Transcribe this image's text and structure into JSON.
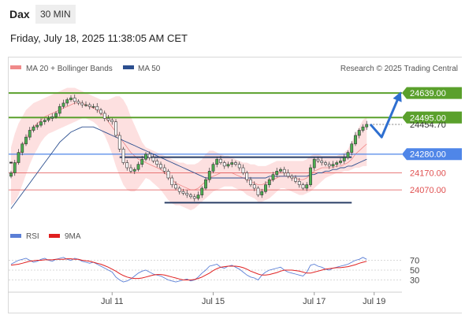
{
  "header": {
    "symbol": "Dax",
    "timeframe": "30 MIN",
    "datetime": "Friday, July 18, 2025 11:38:05 AM CET"
  },
  "legend": {
    "items": [
      {
        "label": "MA 20 + Bollinger Bands",
        "color": "#f08a8a"
      },
      {
        "label": "MA 50",
        "color": "#2c4f8f"
      }
    ],
    "credit": "Research © 2025 Trading Central"
  },
  "rsi_legend": {
    "items": [
      {
        "label": "RSI",
        "color": "#5b7fd6"
      },
      {
        "label": "9MA",
        "color": "#e02020"
      }
    ]
  },
  "chart_data": {
    "type": "candlestick",
    "price_range": [
      23890,
      24700
    ],
    "levels": [
      {
        "value": 24639,
        "label": "24639.00",
        "color": "#5aa02c",
        "style": "badge"
      },
      {
        "value": 24495,
        "label": "24495.00",
        "color": "#5aa02c",
        "style": "badge"
      },
      {
        "value": 24280,
        "label": "24280.00",
        "color": "#4f86e8",
        "style": "badge"
      },
      {
        "value": 24170,
        "label": "24170.00",
        "color": "#e05050",
        "style": "text"
      },
      {
        "value": 24070,
        "label": "24070.00",
        "color": "#e05050",
        "style": "text"
      }
    ],
    "current_price": {
      "value": 24454.7,
      "label": "24454.70"
    },
    "x_labels": [
      {
        "label": "Jul 11",
        "index": 27
      },
      {
        "label": "Jul 15",
        "index": 54
      },
      {
        "label": "Jul 17",
        "index": 81
      },
      {
        "label": "Jul 19",
        "index": 97
      }
    ],
    "closes": [
      24170,
      24230,
      24290,
      24340,
      24380,
      24420,
      24440,
      24450,
      24470,
      24480,
      24490,
      24500,
      24520,
      24560,
      24580,
      24600,
      24610,
      24590,
      24580,
      24570,
      24570,
      24560,
      24560,
      24540,
      24520,
      24490,
      24480,
      24470,
      24390,
      24310,
      24230,
      24200,
      24180,
      24190,
      24220,
      24250,
      24280,
      24260,
      24240,
      24220,
      24200,
      24180,
      24140,
      24100,
      24080,
      24060,
      24050,
      24040,
      24030,
      24020,
      24040,
      24080,
      24130,
      24180,
      24220,
      24250,
      24230,
      24210,
      24220,
      24230,
      24220,
      24200,
      24170,
      24130,
      24100,
      24080,
      24040,
      24060,
      24100,
      24130,
      24160,
      24180,
      24190,
      24170,
      24150,
      24140,
      24120,
      24100,
      24080,
      24100,
      24200,
      24250,
      24240,
      24230,
      24220,
      24210,
      24220,
      24230,
      24240,
      24260,
      24290,
      24340,
      24390,
      24420,
      24440,
      24455
    ],
    "bands": {
      "upper": [
        24320,
        24400,
        24460,
        24500,
        24540,
        24560,
        24580,
        24590,
        24600,
        24610,
        24620,
        24630,
        24640,
        24650,
        24660,
        24670,
        24670,
        24670,
        24660,
        24650,
        24640,
        24630,
        24620,
        24610,
        24600,
        24600,
        24600,
        24610,
        24620,
        24620,
        24600,
        24560,
        24500,
        24450,
        24400,
        24350,
        24320,
        24310,
        24300,
        24290,
        24280,
        24270,
        24260,
        24250,
        24240,
        24230,
        24230,
        24220,
        24220,
        24220,
        24230,
        24250,
        24280,
        24300,
        24300,
        24290,
        24280,
        24270,
        24270,
        24260,
        24250,
        24240,
        24230,
        24230,
        24220,
        24220,
        24210,
        24210,
        24210,
        24220,
        24230,
        24240,
        24240,
        24240,
        24240,
        24240,
        24240,
        24240,
        24240,
        24250,
        24270,
        24280,
        24280,
        24270,
        24270,
        24270,
        24270,
        24270,
        24280,
        24290,
        24310,
        24350,
        24400,
        24440,
        24480,
        24500
      ],
      "middle": [
        24150,
        24200,
        24260,
        24320,
        24370,
        24410,
        24440,
        24460,
        24480,
        24500,
        24510,
        24520,
        24530,
        24540,
        24550,
        24560,
        24570,
        24580,
        24580,
        24580,
        24570,
        24560,
        24550,
        24540,
        24520,
        24500,
        24470,
        24440,
        24410,
        24380,
        24350,
        24320,
        24290,
        24270,
        24250,
        24240,
        24230,
        24220,
        24210,
        24200,
        24190,
        24170,
        24150,
        24130,
        24110,
        24100,
        24090,
        24080,
        24070,
        24070,
        24080,
        24100,
        24120,
        24140,
        24150,
        24160,
        24170,
        24170,
        24170,
        24170,
        24160,
        24150,
        24140,
        24130,
        24120,
        24110,
        24100,
        24100,
        24110,
        24120,
        24130,
        24140,
        24150,
        24150,
        24150,
        24140,
        24140,
        24130,
        24130,
        24140,
        24160,
        24180,
        24190,
        24200,
        24200,
        24200,
        24200,
        24210,
        24210,
        24220,
        24230,
        24250,
        24280,
        24300,
        24320,
        24340
      ],
      "lower": [
        23980,
        24000,
        24040,
        24100,
        24160,
        24220,
        24270,
        24310,
        24350,
        24380,
        24400,
        24410,
        24420,
        24430,
        24440,
        24450,
        24460,
        24470,
        24480,
        24490,
        24490,
        24480,
        24470,
        24450,
        24420,
        24390,
        24340,
        24280,
        24210,
        24150,
        24100,
        24070,
        24060,
        24060,
        24080,
        24110,
        24140,
        24130,
        24110,
        24090,
        24070,
        24040,
        24010,
        23990,
        23980,
        23980,
        23970,
        23960,
        23950,
        23960,
        23980,
        24000,
        24020,
        24040,
        24060,
        24070,
        24080,
        24090,
        24090,
        24090,
        24080,
        24070,
        24060,
        24040,
        24030,
        24020,
        24000,
        24000,
        24010,
        24020,
        24040,
        24060,
        24080,
        24080,
        24070,
        24060,
        24050,
        24040,
        24040,
        24050,
        24060,
        24080,
        24100,
        24120,
        24140,
        24150,
        24160,
        24170,
        24170,
        24180,
        24180,
        24190,
        24200,
        24200,
        24210,
        24210
      ]
    },
    "ma50": [
      23960,
      23990,
      24020,
      24050,
      24080,
      24110,
      24140,
      24170,
      24200,
      24230,
      24260,
      24290,
      24320,
      24350,
      24370,
      24390,
      24410,
      24420,
      24430,
      24440,
      24440,
      24440,
      24440,
      24430,
      24420,
      24410,
      24400,
      24390,
      24380,
      24370,
      24360,
      24350,
      24340,
      24330,
      24320,
      24310,
      24300,
      24290,
      24280,
      24270,
      24260,
      24250,
      24240,
      24230,
      24220,
      24210,
      24200,
      24190,
      24180,
      24170,
      24160,
      24150,
      24140,
      24140,
      24140,
      24140,
      24140,
      24140,
      24140,
      24140,
      24140,
      24140,
      24140,
      24140,
      24140,
      24140,
      24140,
      24140,
      24140,
      24150,
      24150,
      24150,
      24150,
      24150,
      24150,
      24150,
      24150,
      24150,
      24150,
      24150,
      24160,
      24160,
      24170,
      24170,
      24180,
      24180,
      24190,
      24190,
      24200,
      24200,
      24210,
      24210,
      24220,
      24230,
      24240,
      24250
    ],
    "support_line": {
      "value": 23995,
      "from": 41,
      "to": 91
    },
    "resistance_line": {
      "value": 24262,
      "from": 29,
      "to": 91
    },
    "projection": [
      {
        "index": 96,
        "value": 24455
      },
      {
        "index": 99,
        "value": 24380
      },
      {
        "index": 104,
        "value": 24639
      }
    ],
    "rsi": {
      "ticks": [
        70,
        50,
        30
      ],
      "range": [
        10,
        90
      ],
      "rsi": [
        62,
        66,
        70,
        72,
        74,
        70,
        66,
        68,
        72,
        74,
        70,
        68,
        72,
        74,
        76,
        72,
        70,
        74,
        72,
        68,
        66,
        64,
        66,
        62,
        58,
        54,
        50,
        46,
        36,
        30,
        26,
        28,
        32,
        38,
        44,
        48,
        50,
        46,
        42,
        40,
        38,
        34,
        30,
        28,
        26,
        28,
        30,
        32,
        28,
        30,
        36,
        44,
        50,
        58,
        60,
        62,
        56,
        54,
        58,
        60,
        56,
        52,
        46,
        40,
        36,
        34,
        30,
        40,
        46,
        50,
        52,
        54,
        56,
        50,
        46,
        44,
        42,
        40,
        38,
        46,
        60,
        62,
        58,
        56,
        52,
        50,
        54,
        56,
        58,
        60,
        62,
        66,
        70,
        72,
        76,
        72
      ],
      "ma9": [
        60,
        61,
        62,
        64,
        66,
        68,
        69,
        70,
        70,
        71,
        71,
        71,
        72,
        72,
        72,
        73,
        73,
        72,
        72,
        70,
        69,
        68,
        66,
        64,
        62,
        59,
        56,
        52,
        48,
        43,
        39,
        36,
        34,
        33,
        33,
        34,
        36,
        38,
        40,
        41,
        41,
        40,
        38,
        36,
        34,
        32,
        30,
        30,
        30,
        31,
        33,
        36,
        40,
        44,
        49,
        53,
        56,
        57,
        58,
        58,
        58,
        57,
        55,
        52,
        48,
        45,
        42,
        40,
        40,
        41,
        43,
        45,
        48,
        50,
        50,
        50,
        49,
        48,
        46,
        44,
        44,
        46,
        48,
        50,
        52,
        53,
        54,
        55,
        55,
        56,
        57,
        59,
        61,
        64,
        66,
        68
      ]
    }
  }
}
